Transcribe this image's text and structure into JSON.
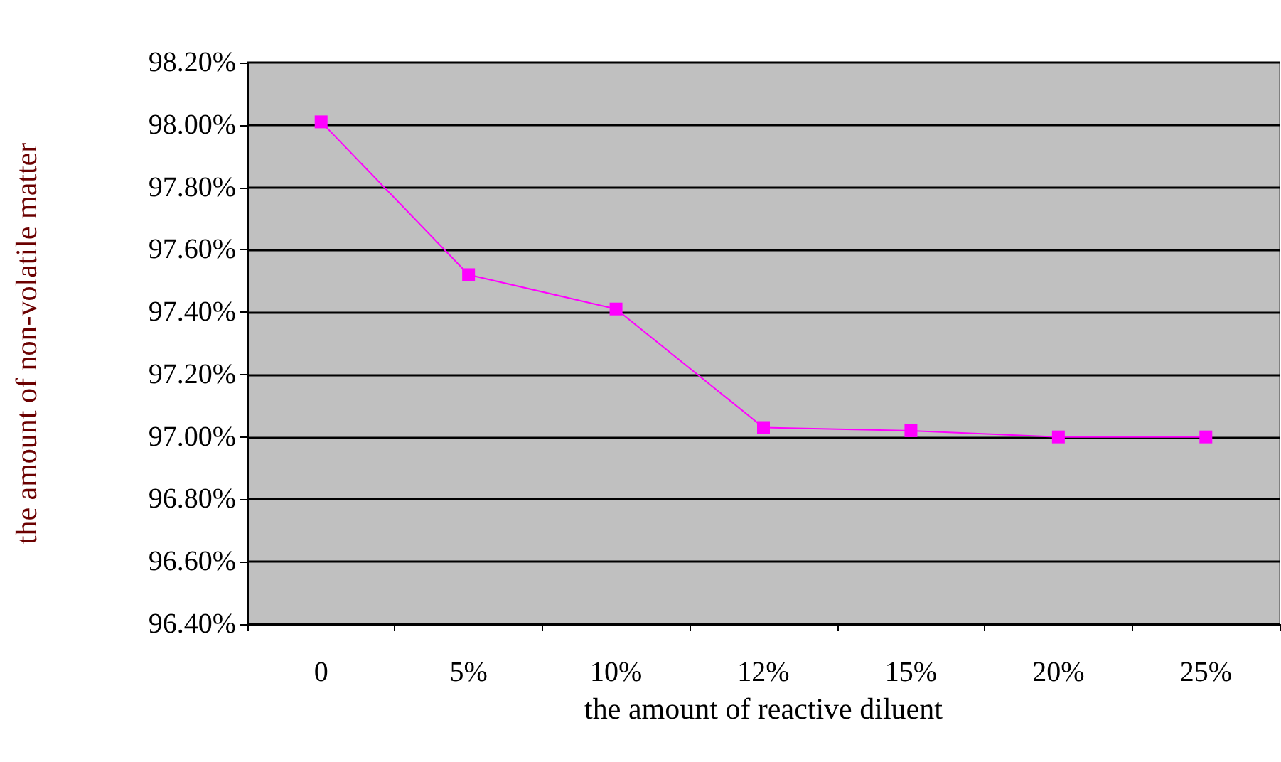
{
  "chart_data": {
    "type": "line",
    "xlabel": "the amount of reactive diluent",
    "ylabel": "the amount of non-volatile matter",
    "categories": [
      "0",
      "5%",
      "10%",
      "12%",
      "15%",
      "20%",
      "25%"
    ],
    "series": [
      {
        "color": "#ff00ff",
        "values": [
          98.01,
          97.52,
          97.41,
          97.03,
          97.02,
          97.0,
          97.0
        ]
      }
    ],
    "ylim": [
      96.4,
      98.2
    ],
    "yticks": [
      {
        "value": 96.4,
        "label": "96.40%"
      },
      {
        "value": 96.6,
        "label": "96.60%"
      },
      {
        "value": 96.8,
        "label": "96.80%"
      },
      {
        "value": 97.0,
        "label": "97.00%"
      },
      {
        "value": 97.2,
        "label": "97.20%"
      },
      {
        "value": 97.4,
        "label": "97.40%"
      },
      {
        "value": 97.6,
        "label": "97.60%"
      },
      {
        "value": 97.8,
        "label": "97.80%"
      },
      {
        "value": 98.0,
        "label": "98.00%"
      },
      {
        "value": 98.2,
        "label": "98.20%"
      }
    ],
    "grid": "y",
    "marker": "square",
    "line_style": "solid"
  }
}
